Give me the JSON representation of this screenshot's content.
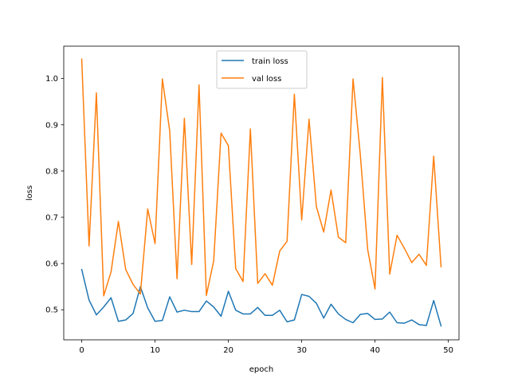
{
  "chart_data": {
    "type": "line",
    "xlabel": "epoch",
    "ylabel": "loss",
    "xlim": [
      -2.45,
      51.45
    ],
    "ylim": [
      0.435,
      1.07
    ],
    "xticks": [
      0,
      10,
      20,
      30,
      40,
      50
    ],
    "xtick_labels": [
      "0",
      "10",
      "20",
      "30",
      "40",
      "50"
    ],
    "yticks": [
      0.5,
      0.6,
      0.7,
      0.8,
      0.9,
      1.0
    ],
    "ytick_labels": [
      "0.5",
      "0.6",
      "0.7",
      "0.8",
      "0.9",
      "1.0"
    ],
    "grid": false,
    "legend_position": "upper center",
    "x": [
      0,
      1,
      2,
      3,
      4,
      5,
      6,
      7,
      8,
      9,
      10,
      11,
      12,
      13,
      14,
      15,
      16,
      17,
      18,
      19,
      20,
      21,
      22,
      23,
      24,
      25,
      26,
      27,
      28,
      29,
      30,
      31,
      32,
      33,
      34,
      35,
      36,
      37,
      38,
      39,
      40,
      41,
      42,
      43,
      44,
      45,
      46,
      47,
      48,
      49
    ],
    "series": [
      {
        "name": "train loss",
        "color": "#1f77b4",
        "values": [
          0.587,
          0.521,
          0.489,
          0.506,
          0.526,
          0.475,
          0.478,
          0.492,
          0.55,
          0.504,
          0.475,
          0.477,
          0.528,
          0.495,
          0.499,
          0.496,
          0.496,
          0.519,
          0.506,
          0.486,
          0.54,
          0.499,
          0.491,
          0.491,
          0.505,
          0.488,
          0.488,
          0.499,
          0.474,
          0.478,
          0.533,
          0.529,
          0.514,
          0.482,
          0.512,
          0.491,
          0.479,
          0.472,
          0.49,
          0.492,
          0.479,
          0.48,
          0.495,
          0.472,
          0.471,
          0.478,
          0.468,
          0.466,
          0.52,
          0.465
        ]
      },
      {
        "name": "val loss",
        "color": "#ff7f0e",
        "values": [
          1.042,
          0.638,
          0.969,
          0.53,
          0.582,
          0.691,
          0.587,
          0.555,
          0.534,
          0.718,
          0.643,
          0.999,
          0.887,
          0.567,
          0.914,
          0.598,
          0.986,
          0.531,
          0.606,
          0.882,
          0.855,
          0.589,
          0.561,
          0.891,
          0.557,
          0.578,
          0.553,
          0.627,
          0.648,
          0.966,
          0.694,
          0.912,
          0.723,
          0.668,
          0.759,
          0.657,
          0.645,
          0.999,
          0.834,
          0.63,
          0.545,
          1.002,
          0.577,
          0.661,
          0.633,
          0.602,
          0.62,
          0.596,
          0.832,
          0.593
        ]
      }
    ]
  }
}
